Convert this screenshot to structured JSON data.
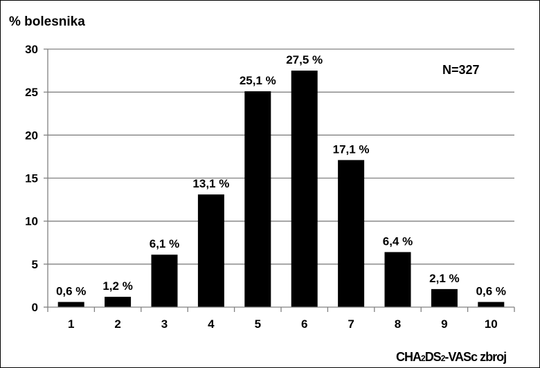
{
  "chart_data": {
    "type": "bar",
    "ylabel": "% bolesnika",
    "xlabel_parts": [
      "CHA",
      "2",
      "DS",
      "2",
      "-VASc zbroj"
    ],
    "annotation": "N=327",
    "categories": [
      "1",
      "2",
      "3",
      "4",
      "5",
      "6",
      "7",
      "8",
      "9",
      "10"
    ],
    "values": [
      0.6,
      1.2,
      6.1,
      13.1,
      25.1,
      27.5,
      17.1,
      6.4,
      2.1,
      0.6
    ],
    "data_labels": [
      "0,6 %",
      "1,2 %",
      "6,1 %",
      "13,1 %",
      "25,1 %",
      "27,5 %",
      "17,1 %",
      "6,4 %",
      "2,1 %",
      "0,6 %"
    ],
    "ylim": [
      0,
      30
    ],
    "yticks": [
      "0",
      "5",
      "10",
      "15",
      "20",
      "25",
      "30"
    ],
    "grid": true,
    "colors": {
      "bar": "#000000",
      "grid": "#808080",
      "axis": "#808080"
    }
  }
}
